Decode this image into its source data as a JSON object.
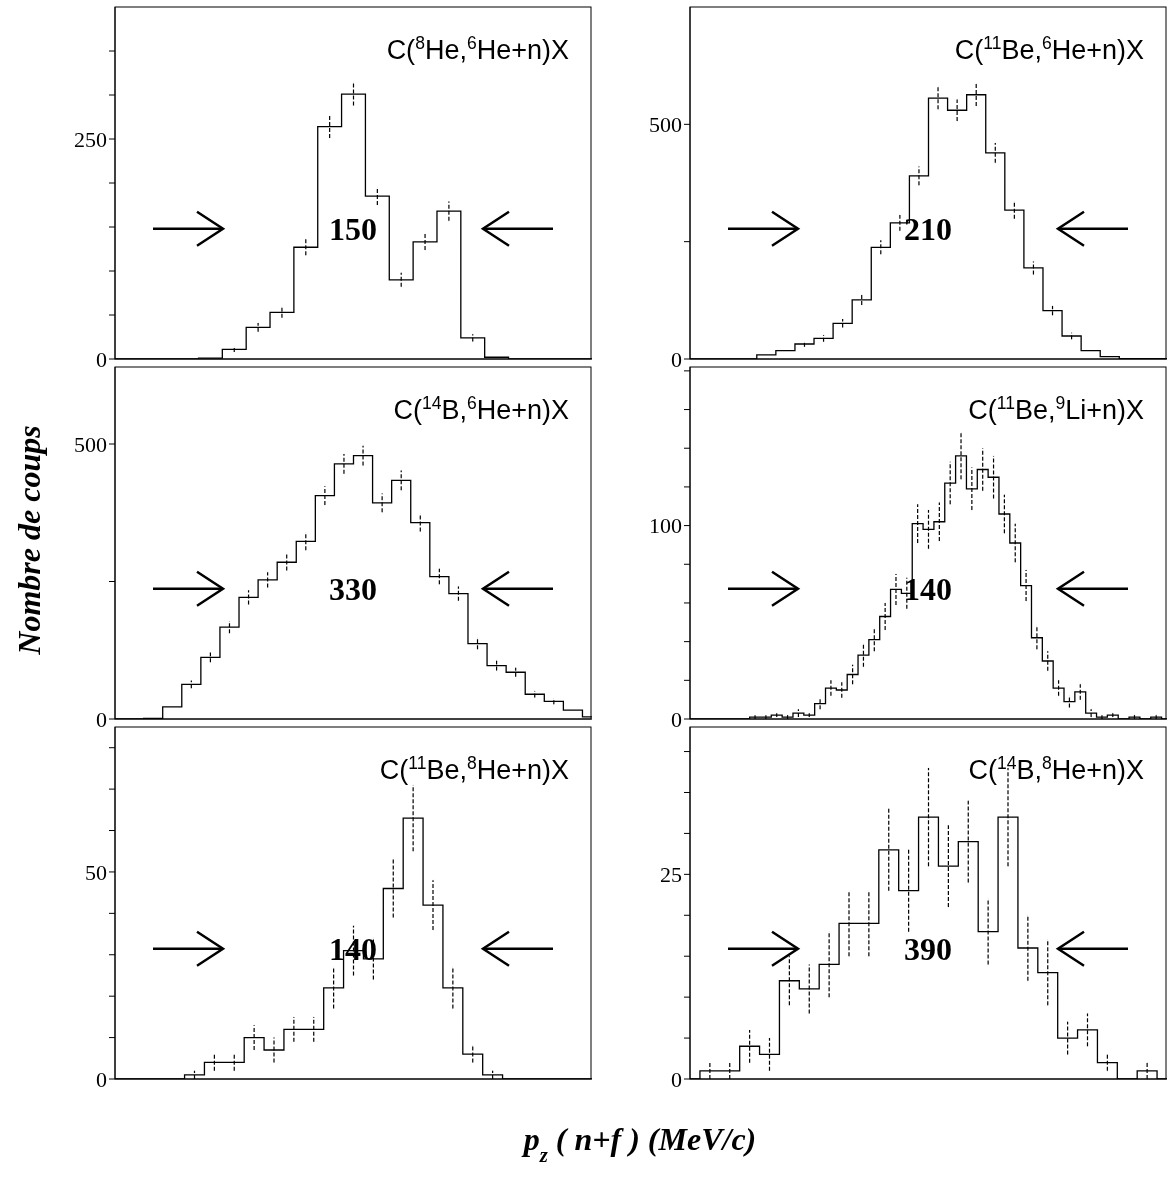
{
  "chart_data": [
    {
      "type": "step",
      "title": "C($^{8}$He,$^{6}$He+n)X",
      "categories": [
        null,
        null,
        null,
        null,
        null,
        null,
        null,
        null,
        null,
        null,
        null,
        null,
        null,
        null,
        null,
        null,
        null,
        null,
        null,
        null,
        null
      ],
      "series": [
        {
          "color": "#000000",
          "values": [
            0,
            0,
            0,
            0,
            1,
            11,
            36,
            53,
            127,
            264,
            301,
            185,
            90,
            133,
            168,
            24,
            2,
            0,
            0,
            0,
            0
          ],
          "errors": [
            null,
            null,
            null,
            null,
            null,
            3,
            5,
            6,
            9,
            13,
            13,
            10,
            8,
            9,
            11,
            4,
            null,
            null,
            null,
            null,
            null
          ]
        }
      ],
      "ylim": [
        0,
        400
      ],
      "yticks": [
        0,
        {
          "value": 50,
          "label": null
        },
        {
          "value": 100,
          "label": null
        },
        {
          "value": 150,
          "label": null
        },
        {
          "value": 200,
          "label": null
        },
        250,
        {
          "value": 300,
          "label": null
        },
        {
          "value": 350,
          "label": null
        }
      ],
      "annotations": [
        "150"
      ]
    },
    {
      "type": "step",
      "title": "C($^{11}$Be,$^{6}$He+n)X",
      "categories": [
        null,
        null,
        null,
        null,
        null,
        null,
        null,
        null,
        null,
        null,
        null,
        null,
        null,
        null,
        null,
        null,
        null,
        null,
        null,
        null,
        null,
        null,
        null,
        null,
        null,
        null
      ],
      "series": [
        {
          "color": "#000000",
          "values": [
            0,
            0,
            0,
            0,
            9,
            18,
            32,
            44,
            76,
            126,
            238,
            290,
            390,
            556,
            530,
            563,
            439,
            317,
            194,
            103,
            49,
            18,
            5,
            1,
            1,
            1
          ],
          "errors": [
            null,
            null,
            null,
            null,
            null,
            null,
            6,
            7,
            9,
            11,
            15,
            17,
            20,
            24,
            23,
            24,
            21,
            18,
            14,
            10,
            7,
            null,
            null,
            null,
            null,
            null
          ]
        }
      ],
      "ylim": [
        0,
        750
      ],
      "yticks": [
        0,
        {
          "value": 250,
          "label": null
        },
        500
      ],
      "annotations": [
        "210"
      ]
    },
    {
      "type": "step",
      "title": "C($^{14}$B,$^{6}$He+n)X",
      "ylabel": "Nombre de coups",
      "categories": [
        null,
        null,
        null,
        null,
        null,
        null,
        null,
        null,
        null,
        null,
        null,
        null,
        null,
        null,
        null,
        null,
        null,
        null,
        null,
        null,
        null,
        null,
        null,
        null,
        null,
        null
      ],
      "series": [
        {
          "color": "#000000",
          "values": [
            0,
            0,
            1,
            22,
            63,
            112,
            167,
            221,
            253,
            285,
            323,
            406,
            464,
            479,
            393,
            434,
            357,
            259,
            228,
            137,
            97,
            85,
            45,
            32,
            16,
            4
          ],
          "errors": [
            null,
            null,
            null,
            null,
            7,
            9,
            11,
            13,
            14,
            15,
            16,
            17,
            18,
            18,
            17,
            18,
            16,
            14,
            13,
            10,
            9,
            8,
            6,
            5,
            null,
            null
          ]
        }
      ],
      "ylim": [
        0,
        640
      ],
      "yticks": [
        0,
        {
          "value": 250,
          "label": null
        },
        500
      ],
      "annotations": [
        "330"
      ]
    },
    {
      "type": "step",
      "title": "C($^{11}$Be,$^{9}$Li+n)X",
      "categories": [
        null,
        null,
        null,
        null,
        null,
        null,
        null,
        null,
        null,
        null,
        null,
        null,
        null,
        null,
        null,
        null,
        null,
        null,
        null,
        null,
        null,
        null,
        null,
        null,
        null,
        null,
        null,
        null,
        null,
        null,
        null,
        null,
        null,
        null,
        null,
        null,
        null,
        null,
        null,
        null,
        null,
        null,
        null,
        null,
        null
      ],
      "series": [
        {
          "color": "#000000",
          "values": [
            0,
            0,
            0,
            0,
            0,
            0,
            1,
            1,
            2,
            1,
            3,
            2,
            8,
            16,
            15,
            23,
            33,
            41,
            53,
            67,
            65,
            101,
            98,
            102,
            122,
            136,
            119,
            129,
            125,
            106,
            91,
            69,
            42,
            30,
            16,
            9,
            14,
            3,
            1,
            2,
            0,
            1,
            0,
            1,
            0
          ],
          "errors": [
            null,
            null,
            null,
            null,
            null,
            null,
            1,
            1,
            1,
            1,
            2,
            1,
            3,
            4,
            4,
            5,
            6,
            6,
            7,
            8,
            8,
            10,
            10,
            10,
            11,
            12,
            11,
            11,
            11,
            10,
            10,
            8,
            6,
            5,
            4,
            3,
            4,
            2,
            1,
            1,
            null,
            1,
            null,
            1,
            null
          ]
        }
      ],
      "ylim": [
        0,
        182
      ],
      "yticks": [
        0,
        {
          "value": 20,
          "label": null
        },
        {
          "value": 40,
          "label": null
        },
        {
          "value": 60,
          "label": null
        },
        {
          "value": 80,
          "label": null
        },
        100,
        {
          "value": 120,
          "label": null
        },
        {
          "value": 140,
          "label": null
        },
        {
          "value": 160,
          "label": null
        },
        {
          "value": 180,
          "label": null
        }
      ],
      "annotations": [
        "140"
      ]
    },
    {
      "type": "step",
      "title": "C($^{11}$Be,$^{8}$He+n)X",
      "xlabel": "p$_{z}$ ( n+f ) (MeV/c)",
      "categories": [
        null,
        null,
        null,
        null,
        null,
        null,
        null,
        null,
        null,
        null,
        null,
        null,
        null,
        null,
        null,
        null,
        null,
        null,
        null,
        null,
        null,
        null,
        null,
        null,
        null
      ],
      "series": [
        {
          "color": "#000000",
          "values": [
            0,
            0,
            0,
            0,
            1,
            4,
            4,
            10,
            7,
            12,
            12,
            22,
            31,
            29,
            46,
            63,
            42,
            22,
            6,
            1,
            0,
            0,
            0,
            0,
            0
          ],
          "errors": [
            null,
            null,
            null,
            null,
            1,
            2,
            2,
            3,
            3,
            3,
            3,
            5,
            6,
            5,
            7,
            8,
            6,
            5,
            2,
            1,
            null,
            null,
            null,
            null,
            null
          ]
        }
      ],
      "ylim": [
        0,
        85
      ],
      "yticks": [
        0,
        {
          "value": 10,
          "label": null
        },
        {
          "value": 20,
          "label": null
        },
        {
          "value": 30,
          "label": null
        },
        {
          "value": 40,
          "label": null
        },
        50,
        {
          "value": 60,
          "label": null
        },
        {
          "value": 70,
          "label": null
        },
        {
          "value": 80,
          "label": null
        }
      ],
      "annotations": [
        "140"
      ]
    },
    {
      "type": "step",
      "title": "C($^{14}$B,$^{8}$He+n)X",
      "categories": [
        null,
        null,
        null,
        null,
        null,
        null,
        null,
        null,
        null,
        null,
        null,
        null,
        null,
        null,
        null,
        null,
        null,
        null,
        null,
        null,
        null,
        null,
        null,
        null,
        null
      ],
      "series": [
        {
          "color": "#000000",
          "values": [
            0,
            1,
            1,
            4,
            3,
            12,
            11,
            14,
            19,
            19,
            28,
            23,
            32,
            26,
            29,
            18,
            32,
            16,
            13,
            5,
            6,
            2,
            0,
            1,
            0
          ],
          "errors": [
            null,
            1,
            1,
            2,
            2,
            3,
            3,
            4,
            4,
            4,
            5,
            5,
            6,
            5,
            5,
            4,
            6,
            4,
            4,
            2,
            2,
            1,
            null,
            1,
            null
          ]
        }
      ],
      "ylim": [
        0,
        43
      ],
      "yticks": [
        0,
        {
          "value": 5,
          "label": null
        },
        {
          "value": 10,
          "label": null
        },
        {
          "value": 15,
          "label": null
        },
        {
          "value": 20,
          "label": null
        },
        25,
        {
          "value": 30,
          "label": null
        },
        {
          "value": 35,
          "label": null
        },
        {
          "value": 40,
          "label": null
        }
      ],
      "annotations": [
        "390"
      ]
    }
  ]
}
